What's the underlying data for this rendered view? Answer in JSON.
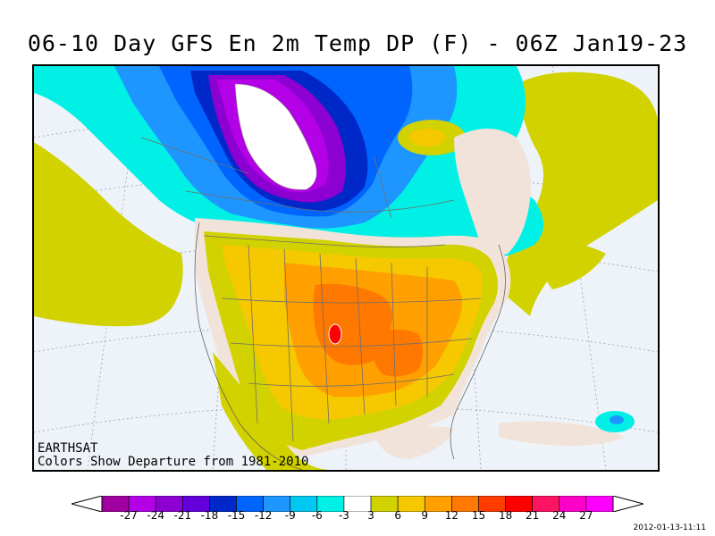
{
  "title": "06-10 Day GFS En 2m Temp DP (F) - 06Z Jan19-23",
  "credit": {
    "line1": "EARTHSAT",
    "line2": "Colors Show Departure from 1981-2010"
  },
  "timestamp": "2012-01-13-11:11",
  "legend": {
    "unit": "F",
    "labels": [
      "-27",
      "-24",
      "-21",
      "-18",
      "-15",
      "-12",
      "-9",
      "-6",
      "-3",
      "3",
      "6",
      "9",
      "12",
      "15",
      "18",
      "21",
      "24",
      "27"
    ],
    "colors": [
      "#a000a0",
      "#b400e6",
      "#8c00d2",
      "#6400dc",
      "#0028c8",
      "#0064ff",
      "#1e96ff",
      "#00c8f0",
      "#00f0e6",
      "#ffffff",
      "#d2d200",
      "#f5c800",
      "#ffa000",
      "#ff7800",
      "#ff3c00",
      "#ff0000",
      "#ff1464",
      "#ff00c8",
      "#ff00ff"
    ],
    "left_arrow_color": "#ffffff",
    "right_arrow_color": "#ffffff"
  },
  "map": {
    "ocean_color": "#edf3f8",
    "land_neutral_color": "#f1e3da",
    "extreme_cold_color": "#ffffff",
    "boundary_color": "#6e6e6e"
  }
}
